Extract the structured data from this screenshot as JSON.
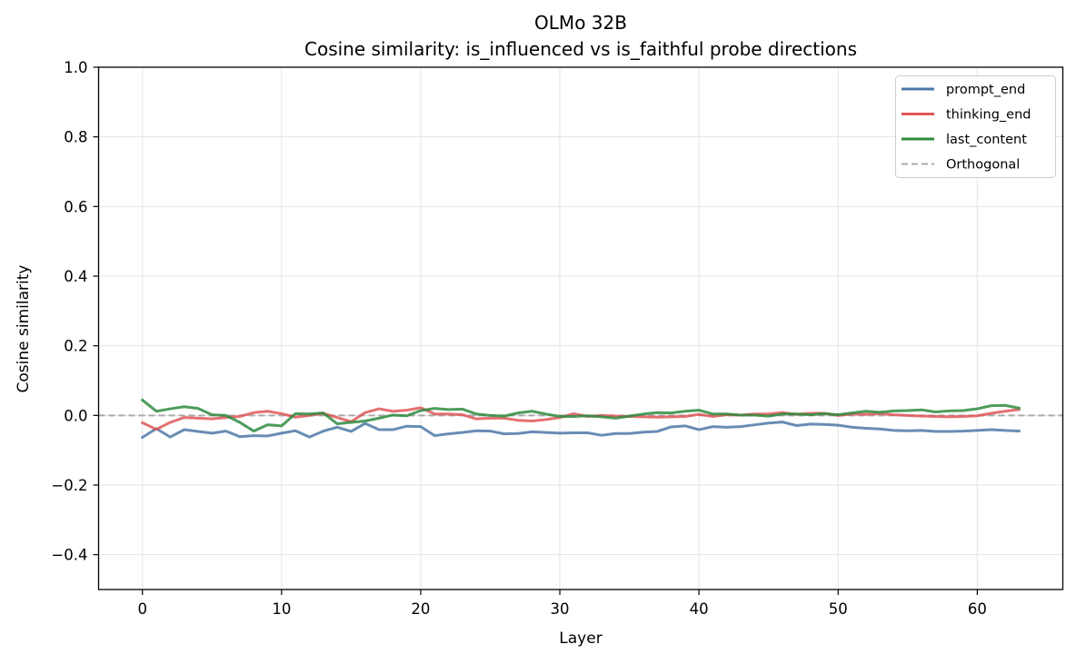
{
  "chart_data": {
    "type": "line",
    "title": "OLMo 32B",
    "subtitle": "Cosine similarity: is_influenced vs is_faithful probe directions",
    "xlabel": "Layer",
    "ylabel": "Cosine similarity",
    "xlim": [
      -3.15,
      66.15
    ],
    "ylim": [
      -0.5,
      1.0
    ],
    "xticks": [
      0,
      10,
      20,
      30,
      40,
      50,
      60
    ],
    "xtick_labels": [
      "0",
      "10",
      "20",
      "30",
      "40",
      "50",
      "60"
    ],
    "yticks": [
      -0.4,
      -0.2,
      0.0,
      0.2,
      0.4,
      0.6,
      0.8,
      1.0
    ],
    "ytick_labels": [
      "−0.4",
      "−0.2",
      "0.0",
      "0.2",
      "0.4",
      "0.6",
      "0.8",
      "1.0"
    ],
    "grid": true,
    "legend_position": "top-right",
    "x": [
      0,
      1,
      2,
      3,
      4,
      5,
      6,
      7,
      8,
      9,
      10,
      11,
      12,
      13,
      14,
      15,
      16,
      17,
      18,
      19,
      20,
      21,
      22,
      23,
      24,
      25,
      26,
      27,
      28,
      29,
      30,
      31,
      32,
      33,
      34,
      35,
      36,
      37,
      38,
      39,
      40,
      41,
      42,
      43,
      44,
      45,
      46,
      47,
      48,
      49,
      50,
      51,
      52,
      53,
      54,
      55,
      56,
      57,
      58,
      59,
      60,
      61,
      62,
      63
    ],
    "series": [
      {
        "name": "prompt_end",
        "color": "#4e79a7",
        "style": "solid",
        "values": [
          -0.063,
          -0.038,
          -0.062,
          -0.041,
          -0.046,
          -0.051,
          -0.045,
          -0.061,
          -0.058,
          -0.059,
          -0.051,
          -0.044,
          -0.062,
          -0.045,
          -0.034,
          -0.046,
          -0.023,
          -0.041,
          -0.041,
          -0.031,
          -0.032,
          -0.058,
          -0.053,
          -0.049,
          -0.044,
          -0.045,
          -0.053,
          -0.052,
          -0.047,
          -0.049,
          -0.051,
          -0.05,
          -0.05,
          -0.057,
          -0.052,
          -0.052,
          -0.048,
          -0.046,
          -0.033,
          -0.03,
          -0.041,
          -0.032,
          -0.034,
          -0.032,
          -0.027,
          -0.022,
          -0.019,
          -0.029,
          -0.025,
          -0.026,
          -0.028,
          -0.034,
          -0.037,
          -0.039,
          -0.043,
          -0.044,
          -0.043,
          -0.046,
          -0.046,
          -0.045,
          -0.043,
          -0.041,
          -0.043,
          -0.045
        ]
      },
      {
        "name": "thinking_end",
        "color": "#e15759",
        "style": "solid",
        "values": [
          -0.021,
          -0.04,
          -0.02,
          -0.006,
          -0.008,
          -0.01,
          -0.006,
          -0.003,
          0.008,
          0.012,
          0.005,
          -0.005,
          0.0,
          0.006,
          -0.006,
          -0.018,
          0.008,
          0.019,
          0.012,
          0.015,
          0.022,
          0.004,
          0.004,
          0.002,
          -0.01,
          -0.008,
          -0.008,
          -0.014,
          -0.016,
          -0.012,
          -0.006,
          0.005,
          -0.003,
          0.0,
          -0.002,
          -0.003,
          -0.004,
          -0.005,
          -0.004,
          -0.003,
          0.003,
          -0.003,
          0.002,
          0.001,
          0.004,
          0.004,
          0.008,
          0.003,
          0.006,
          0.006,
          0.0,
          0.004,
          0.003,
          0.005,
          0.002,
          0.0,
          -0.002,
          -0.003,
          -0.004,
          -0.003,
          -0.001,
          0.006,
          0.012,
          0.017
        ]
      },
      {
        "name": "last_content",
        "color": "#2e8b3e",
        "style": "solid",
        "values": [
          0.044,
          0.012,
          0.019,
          0.025,
          0.02,
          0.002,
          0.0,
          -0.02,
          -0.045,
          -0.027,
          -0.03,
          0.005,
          0.004,
          0.007,
          -0.024,
          -0.02,
          -0.016,
          -0.008,
          0.001,
          -0.001,
          0.014,
          0.02,
          0.017,
          0.018,
          0.004,
          0.0,
          -0.002,
          0.007,
          0.012,
          0.004,
          -0.003,
          -0.003,
          -0.001,
          -0.004,
          -0.008,
          -0.002,
          0.004,
          0.008,
          0.007,
          0.012,
          0.015,
          0.004,
          0.004,
          0.001,
          0.001,
          -0.002,
          0.004,
          0.004,
          0.002,
          0.005,
          0.002,
          0.007,
          0.012,
          0.009,
          0.013,
          0.014,
          0.016,
          0.01,
          0.013,
          0.014,
          0.019,
          0.028,
          0.029,
          0.021
        ]
      }
    ],
    "reference_line": {
      "name": "Orthogonal",
      "y": 0.0,
      "color": "#aaaaaa",
      "style": "dashed"
    }
  }
}
